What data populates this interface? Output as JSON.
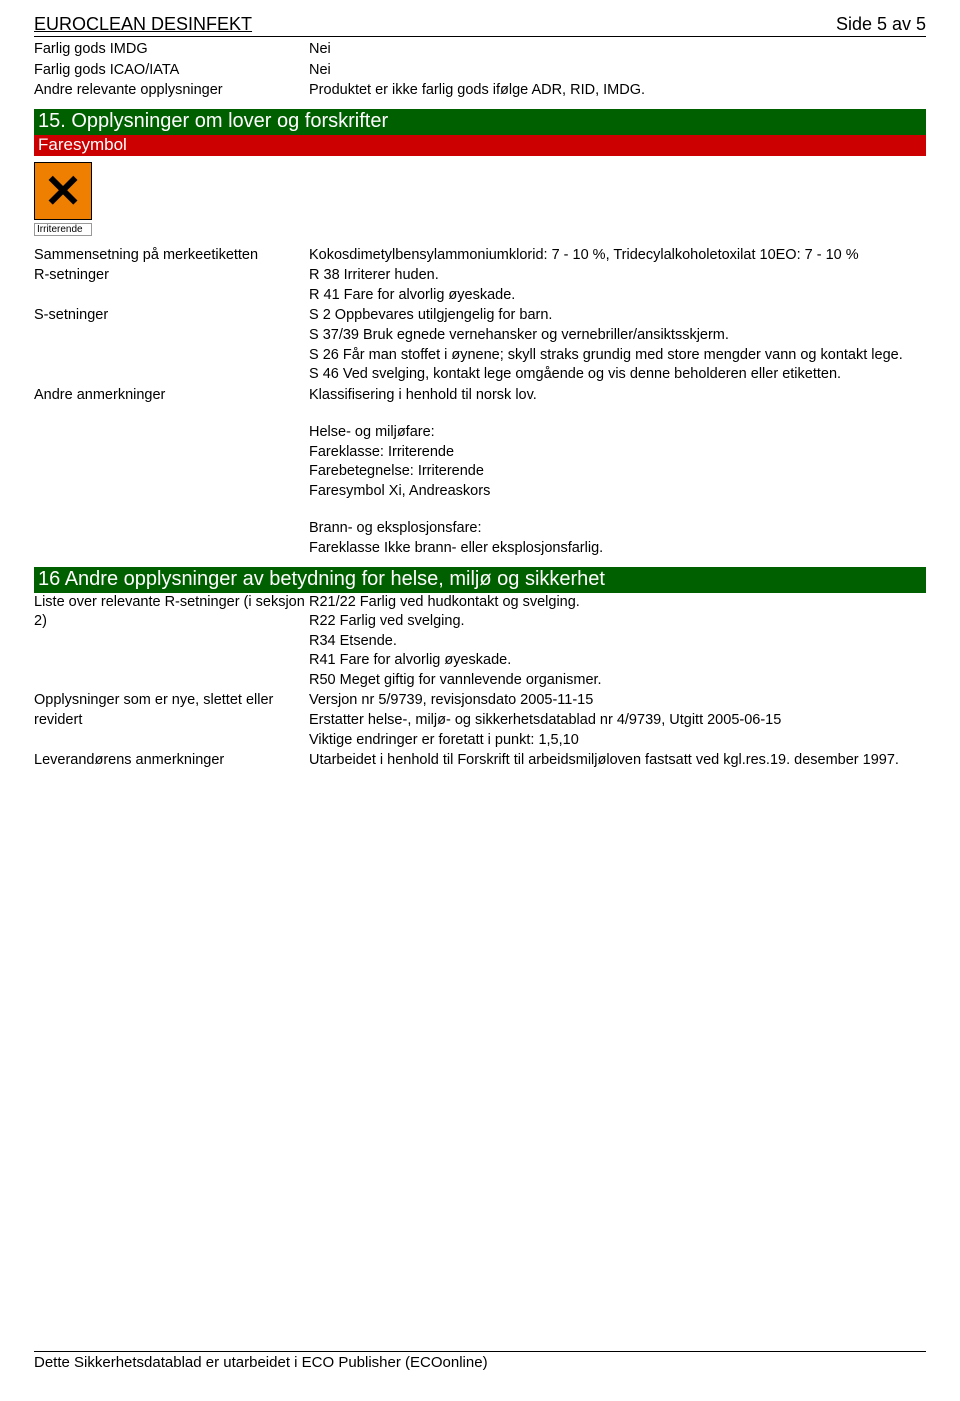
{
  "header": {
    "title": "EUROCLEAN DESINFEKT",
    "page": "Side 5 av 5"
  },
  "transport": {
    "imdg_label": "Farlig gods IMDG",
    "imdg_value": "Nei",
    "icao_label": "Farlig gods ICAO/IATA",
    "icao_value": "Nei",
    "other_label": "Andre relevante opplysninger",
    "other_value": "Produktet er ikke farlig gods ifølge ADR, RID, IMDG."
  },
  "section15": {
    "title": "15. Opplysninger om lover og forskrifter",
    "subtitle": "Faresymbol",
    "symbol_caption": "Irriterende",
    "composition_label": "Sammensetning på merkeetiketten",
    "composition_value": "Kokosdimetylbensylammoniumklorid: 7 - 10 %, Tridecylalkoholetoxilat 10EO: 7 - 10 %",
    "r_label": "R-setninger",
    "r_value1": "R 38 Irriterer huden.",
    "r_value2": "R 41 Fare for alvorlig øyeskade.",
    "s_label": "S-setninger",
    "s_value1": "S 2 Oppbevares utilgjengelig for barn.",
    "s_value2": "S 37/39 Bruk egnede vernehansker og vernebriller/ansiktsskjerm.",
    "s_value3": "S 26 Får man stoffet i øynene; skyll straks grundig med store mengder vann og kontakt lege.",
    "s_value4": "S 46 Ved svelging, kontakt lege omgående og vis denne beholderen eller etiketten.",
    "other_label": "Andre anmerkninger",
    "other_v1": "Klassifisering i henhold til norsk lov.",
    "other_v2": "Helse- og miljøfare:",
    "other_v3": "Fareklasse: Irriterende",
    "other_v4": "Farebetegnelse: Irriterende",
    "other_v5": "Faresymbol Xi, Andreaskors",
    "other_v6": "Brann- og eksplosjonsfare:",
    "other_v7": "Fareklasse Ikke brann- eller eksplosjonsfarlig."
  },
  "section16": {
    "title": "16 Andre opplysninger av betydning for helse, miljø og sikkerhet",
    "list_label": "Liste over relevante R-setninger (i seksjon 2)",
    "list_v1": "R21/22 Farlig ved hudkontakt og svelging.",
    "list_v2": "R22 Farlig ved svelging.",
    "list_v3": "R34 Etsende.",
    "list_v4": "R41 Fare for alvorlig øyeskade.",
    "list_v5": "R50 Meget giftig for vannlevende organismer.",
    "changes_label": "Opplysninger som er nye, slettet eller revidert",
    "changes_v1": "Versjon nr 5/9739, revisjonsdato 2005-11-15",
    "changes_v2": "Erstatter helse-, miljø- og sikkerhetsdatablad nr 4/9739, Utgitt 2005-06-15",
    "changes_v3": "Viktige endringer er foretatt i punkt: 1,5,10",
    "supplier_label": "Leverandørens anmerkninger",
    "supplier_value": "Utarbeidet i henhold til Forskrift til arbeidsmiljøloven fastsatt ved kgl.res.19. desember 1997."
  },
  "footer": {
    "text": "Dette Sikkerhetsdatablad er utarbeidet i ECO Publisher (ECOonline)"
  },
  "colors": {
    "section_bg": "#006000",
    "sub_bg": "#cc0000",
    "symbol_bg": "#ee7f00",
    "text": "#000000",
    "page_bg": "#ffffff"
  }
}
